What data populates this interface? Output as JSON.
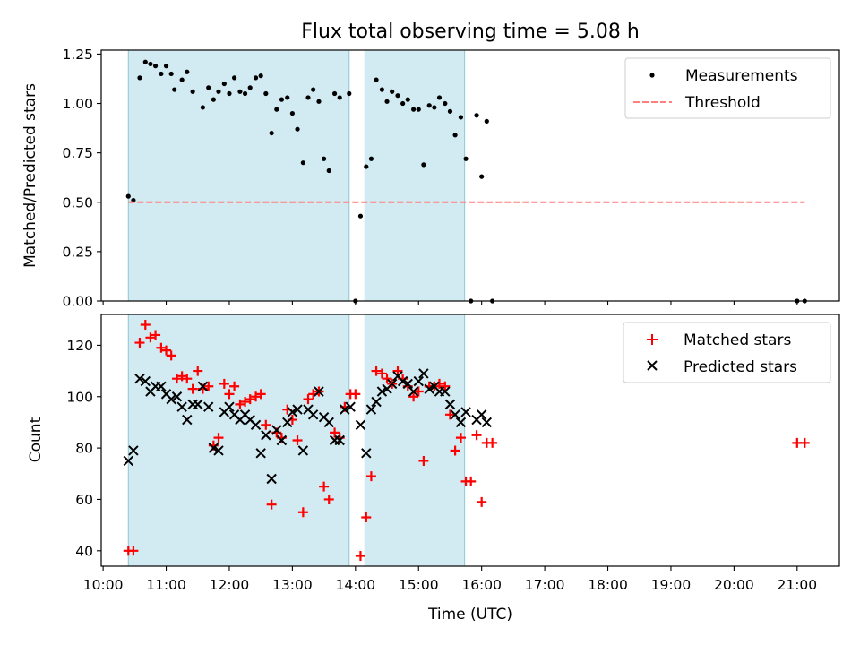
{
  "chart_data": {
    "title": "Flux total observing time = 5.08 h",
    "xlabel": "Time (UTC)",
    "x_ticks": [
      "10:00",
      "11:00",
      "12:00",
      "13:00",
      "14:00",
      "15:00",
      "16:00",
      "17:00",
      "18:00",
      "19:00",
      "20:00",
      "21:00"
    ],
    "x_unit": "hours UTC",
    "x_range": [
      9.97,
      21.67
    ],
    "shaded_intervals": [
      [
        10.4,
        13.9
      ],
      [
        14.15,
        15.73
      ]
    ],
    "shade_color": "#add8e6",
    "panels": [
      {
        "type": "scatter",
        "ylabel": "Matched/Predicted stars",
        "ylim": [
          0,
          1.27
        ],
        "y_ticks": [
          "0.00",
          "0.25",
          "0.50",
          "0.75",
          "1.00",
          "1.25"
        ],
        "y_tick_values": [
          0,
          0.25,
          0.5,
          0.75,
          1.0,
          1.25
        ],
        "legend_position": "top-right",
        "series": [
          {
            "name": "Measurements",
            "marker": "dot",
            "color": "#000000",
            "points": [
              [
                10.4,
                0.53
              ],
              [
                10.48,
                0.51
              ],
              [
                10.58,
                1.13
              ],
              [
                10.67,
                1.21
              ],
              [
                10.75,
                1.2
              ],
              [
                10.83,
                1.19
              ],
              [
                10.92,
                1.15
              ],
              [
                11.0,
                1.19
              ],
              [
                11.08,
                1.15
              ],
              [
                11.13,
                1.07
              ],
              [
                11.25,
                1.12
              ],
              [
                11.33,
                1.16
              ],
              [
                11.42,
                1.06
              ],
              [
                11.58,
                0.98
              ],
              [
                11.67,
                1.08
              ],
              [
                11.75,
                1.02
              ],
              [
                11.83,
                1.06
              ],
              [
                11.92,
                1.1
              ],
              [
                12.0,
                1.05
              ],
              [
                12.08,
                1.13
              ],
              [
                12.17,
                1.06
              ],
              [
                12.25,
                1.05
              ],
              [
                12.33,
                1.08
              ],
              [
                12.42,
                1.13
              ],
              [
                12.5,
                1.14
              ],
              [
                12.58,
                1.05
              ],
              [
                12.67,
                0.85
              ],
              [
                12.75,
                0.97
              ],
              [
                12.83,
                1.02
              ],
              [
                12.92,
                1.03
              ],
              [
                13.0,
                0.95
              ],
              [
                13.08,
                0.87
              ],
              [
                13.17,
                0.7
              ],
              [
                13.25,
                1.03
              ],
              [
                13.33,
                1.07
              ],
              [
                13.42,
                1.01
              ],
              [
                13.5,
                0.72
              ],
              [
                13.58,
                0.66
              ],
              [
                13.67,
                1.05
              ],
              [
                13.75,
                1.03
              ],
              [
                13.9,
                1.05
              ],
              [
                14.0,
                0.0
              ],
              [
                14.08,
                0.43
              ],
              [
                14.17,
                0.68
              ],
              [
                14.25,
                0.72
              ],
              [
                14.33,
                1.12
              ],
              [
                14.42,
                1.07
              ],
              [
                14.5,
                1.01
              ],
              [
                14.58,
                1.06
              ],
              [
                14.67,
                1.04
              ],
              [
                14.75,
                1.0
              ],
              [
                14.83,
                1.02
              ],
              [
                14.92,
                0.97
              ],
              [
                15.0,
                0.97
              ],
              [
                15.08,
                0.69
              ],
              [
                15.17,
                0.99
              ],
              [
                15.25,
                0.98
              ],
              [
                15.33,
                1.03
              ],
              [
                15.42,
                1.0
              ],
              [
                15.5,
                0.96
              ],
              [
                15.58,
                0.84
              ],
              [
                15.67,
                0.93
              ],
              [
                15.75,
                0.72
              ],
              [
                15.83,
                0.0
              ],
              [
                15.92,
                0.94
              ],
              [
                16.0,
                0.63
              ],
              [
                16.08,
                0.91
              ],
              [
                16.17,
                0.0
              ],
              [
                21.0,
                0.0
              ],
              [
                21.12,
                0.0
              ]
            ]
          },
          {
            "name": "Threshold",
            "marker": "dashed-line",
            "color": "#ff7f7f",
            "points": [
              [
                10.4,
                0.5
              ],
              [
                21.12,
                0.5
              ]
            ]
          }
        ]
      },
      {
        "type": "scatter",
        "ylabel": "Count",
        "ylim": [
          34,
          132
        ],
        "y_ticks": [
          "40",
          "60",
          "80",
          "100",
          "120"
        ],
        "y_tick_values": [
          40,
          60,
          80,
          100,
          120
        ],
        "legend_position": "top-right",
        "series": [
          {
            "name": "Matched stars",
            "marker": "plus",
            "color": "#ff0000",
            "points": [
              [
                10.4,
                40
              ],
              [
                10.48,
                40
              ],
              [
                10.58,
                121
              ],
              [
                10.67,
                128
              ],
              [
                10.75,
                123
              ],
              [
                10.83,
                124
              ],
              [
                10.92,
                119
              ],
              [
                11.0,
                118
              ],
              [
                11.08,
                116
              ],
              [
                11.17,
                107
              ],
              [
                11.25,
                108
              ],
              [
                11.33,
                107
              ],
              [
                11.42,
                103
              ],
              [
                11.5,
                110
              ],
              [
                11.58,
                103
              ],
              [
                11.67,
                104
              ],
              [
                11.75,
                81
              ],
              [
                11.83,
                84
              ],
              [
                11.92,
                105
              ],
              [
                12.0,
                101
              ],
              [
                12.08,
                104
              ],
              [
                12.17,
                97
              ],
              [
                12.25,
                98
              ],
              [
                12.33,
                99
              ],
              [
                12.42,
                100
              ],
              [
                12.5,
                101
              ],
              [
                12.58,
                89
              ],
              [
                12.67,
                58
              ],
              [
                12.75,
                86
              ],
              [
                12.83,
                84
              ],
              [
                12.92,
                95
              ],
              [
                13.0,
                91
              ],
              [
                13.08,
                83
              ],
              [
                13.17,
                55
              ],
              [
                13.25,
                99
              ],
              [
                13.33,
                101
              ],
              [
                13.42,
                102
              ],
              [
                13.5,
                65
              ],
              [
                13.58,
                60
              ],
              [
                13.67,
                86
              ],
              [
                13.75,
                84
              ],
              [
                13.83,
                96
              ],
              [
                13.92,
                101
              ],
              [
                14.0,
                101
              ],
              [
                14.08,
                38
              ],
              [
                14.17,
                53
              ],
              [
                14.25,
                69
              ],
              [
                14.33,
                110
              ],
              [
                14.42,
                109
              ],
              [
                14.5,
                107
              ],
              [
                14.58,
                105
              ],
              [
                14.67,
                110
              ],
              [
                14.75,
                107
              ],
              [
                14.83,
                104
              ],
              [
                14.92,
                100
              ],
              [
                15.0,
                102
              ],
              [
                15.08,
                75
              ],
              [
                15.17,
                104
              ],
              [
                15.25,
                104
              ],
              [
                15.33,
                105
              ],
              [
                15.42,
                104
              ],
              [
                15.5,
                93
              ],
              [
                15.58,
                79
              ],
              [
                15.67,
                84
              ],
              [
                15.75,
                67
              ],
              [
                15.83,
                67
              ],
              [
                15.92,
                85
              ],
              [
                16.0,
                59
              ],
              [
                16.08,
                82
              ],
              [
                16.17,
                82
              ],
              [
                21.0,
                82
              ],
              [
                21.12,
                82
              ]
            ]
          },
          {
            "name": "Predicted stars",
            "marker": "x",
            "color": "#000000",
            "points": [
              [
                10.4,
                75
              ],
              [
                10.48,
                79
              ],
              [
                10.58,
                107
              ],
              [
                10.67,
                106
              ],
              [
                10.75,
                102
              ],
              [
                10.83,
                104
              ],
              [
                10.92,
                104
              ],
              [
                11.0,
                101
              ],
              [
                11.08,
                99
              ],
              [
                11.17,
                100
              ],
              [
                11.25,
                96
              ],
              [
                11.33,
                91
              ],
              [
                11.42,
                97
              ],
              [
                11.5,
                97
              ],
              [
                11.58,
                104
              ],
              [
                11.67,
                96
              ],
              [
                11.75,
                80
              ],
              [
                11.83,
                79
              ],
              [
                11.92,
                94
              ],
              [
                12.0,
                96
              ],
              [
                12.08,
                93
              ],
              [
                12.17,
                91
              ],
              [
                12.25,
                93
              ],
              [
                12.33,
                91
              ],
              [
                12.42,
                89
              ],
              [
                12.5,
                78
              ],
              [
                12.58,
                85
              ],
              [
                12.67,
                68
              ],
              [
                12.75,
                87
              ],
              [
                12.83,
                83
              ],
              [
                12.92,
                90
              ],
              [
                13.0,
                94
              ],
              [
                13.08,
                95
              ],
              [
                13.17,
                79
              ],
              [
                13.25,
                95
              ],
              [
                13.33,
                93
              ],
              [
                13.42,
                102
              ],
              [
                13.5,
                92
              ],
              [
                13.58,
                90
              ],
              [
                13.67,
                83
              ],
              [
                13.75,
                83
              ],
              [
                13.83,
                95
              ],
              [
                13.92,
                96
              ],
              [
                14.08,
                89
              ],
              [
                14.17,
                78
              ],
              [
                14.25,
                95
              ],
              [
                14.33,
                98
              ],
              [
                14.42,
                102
              ],
              [
                14.5,
                103
              ],
              [
                14.58,
                105
              ],
              [
                14.67,
                108
              ],
              [
                14.75,
                106
              ],
              [
                14.83,
                105
              ],
              [
                14.92,
                102
              ],
              [
                15.0,
                106
              ],
              [
                15.08,
                109
              ],
              [
                15.17,
                103
              ],
              [
                15.25,
                104
              ],
              [
                15.33,
                102
              ],
              [
                15.42,
                102
              ],
              [
                15.5,
                97
              ],
              [
                15.58,
                93
              ],
              [
                15.67,
                90
              ],
              [
                15.75,
                94
              ],
              [
                15.92,
                91
              ],
              [
                16.0,
                93
              ],
              [
                16.08,
                90
              ]
            ]
          }
        ]
      }
    ]
  }
}
